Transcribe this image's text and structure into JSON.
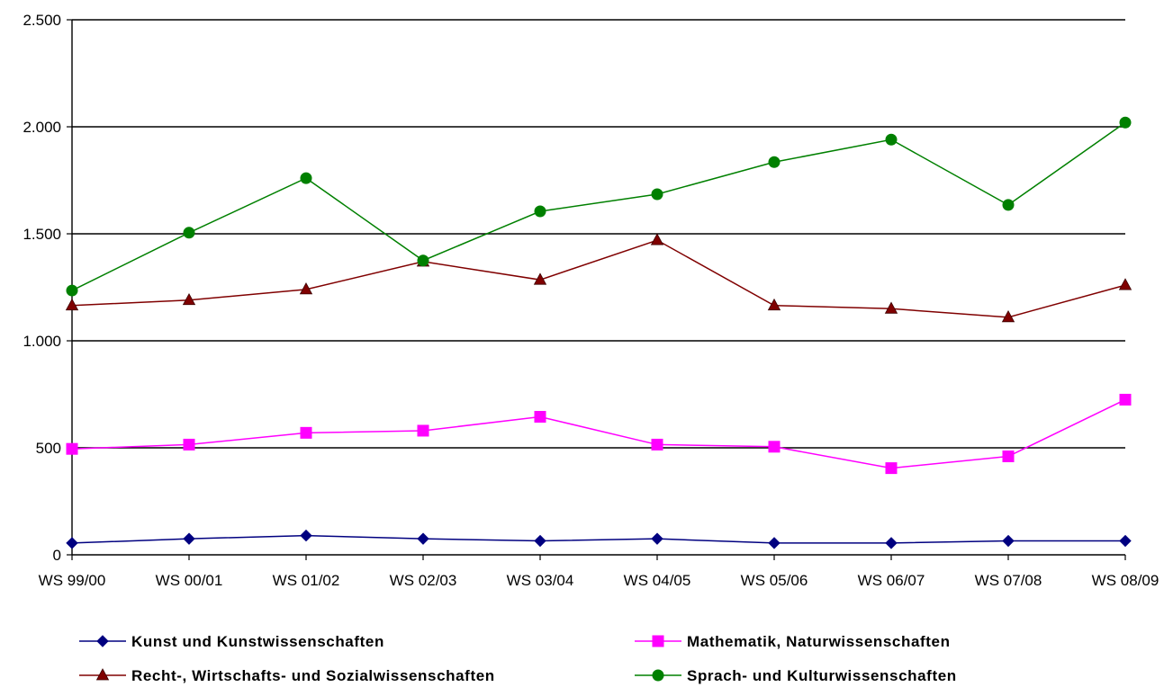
{
  "chart_data": {
    "type": "line",
    "categories": [
      "WS 99/00",
      "WS 00/01",
      "WS 01/02",
      "WS 02/03",
      "WS 03/04",
      "WS 04/05",
      "WS 05/06",
      "WS 06/07",
      "WS 07/08",
      "WS 08/09"
    ],
    "ylim": [
      0,
      2500
    ],
    "yticks": [
      0,
      500,
      1000,
      1500,
      2000,
      2500
    ],
    "ytick_labels": [
      "0",
      "500",
      "1.000",
      "1.500",
      "2.000",
      "2.500"
    ],
    "grid": true,
    "legend_position": "bottom",
    "series": [
      {
        "name": "Kunst und Kunstwissenschaften",
        "color": "#000080",
        "marker": "diamond",
        "values": [
          55,
          75,
          90,
          75,
          65,
          75,
          55,
          55,
          65,
          65
        ]
      },
      {
        "name": "Mathematik, Naturwissenschaften",
        "color": "#FF00FF",
        "marker": "square",
        "values": [
          495,
          515,
          570,
          580,
          645,
          515,
          505,
          405,
          460,
          725
        ]
      },
      {
        "name": "Recht-, Wirtschafts- und Sozialwissenschaften",
        "color": "#800000",
        "marker": "triangle",
        "values": [
          1165,
          1190,
          1240,
          1370,
          1285,
          1470,
          1165,
          1150,
          1110,
          1260
        ]
      },
      {
        "name": "Sprach- und Kulturwissenschaften",
        "color": "#008000",
        "marker": "circle",
        "values": [
          1235,
          1505,
          1760,
          1375,
          1605,
          1685,
          1835,
          1940,
          1635,
          2020
        ]
      }
    ]
  }
}
